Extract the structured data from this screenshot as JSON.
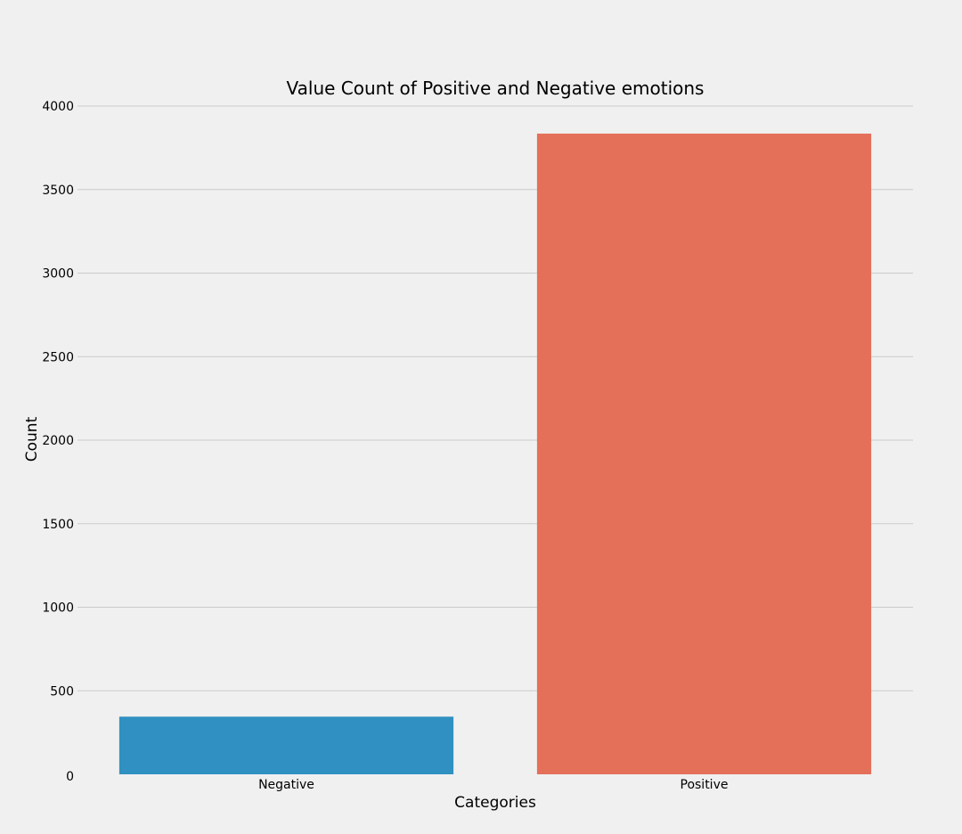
{
  "chart_data": {
    "type": "bar",
    "title": "Value Count of Positive and Negative emotions",
    "xlabel": "Categories",
    "ylabel": "Count",
    "categories": [
      "Negative",
      "Positive"
    ],
    "values": [
      345,
      3835
    ],
    "colors": [
      "#3090c1",
      "#e4705a"
    ],
    "ylim": [
      0,
      4000
    ],
    "yticks": [
      0,
      500,
      1000,
      1500,
      2000,
      2500,
      3000,
      3500,
      4000
    ],
    "grid": true,
    "background": "#f0f0f0",
    "gridColor": "#cbcbcb"
  }
}
